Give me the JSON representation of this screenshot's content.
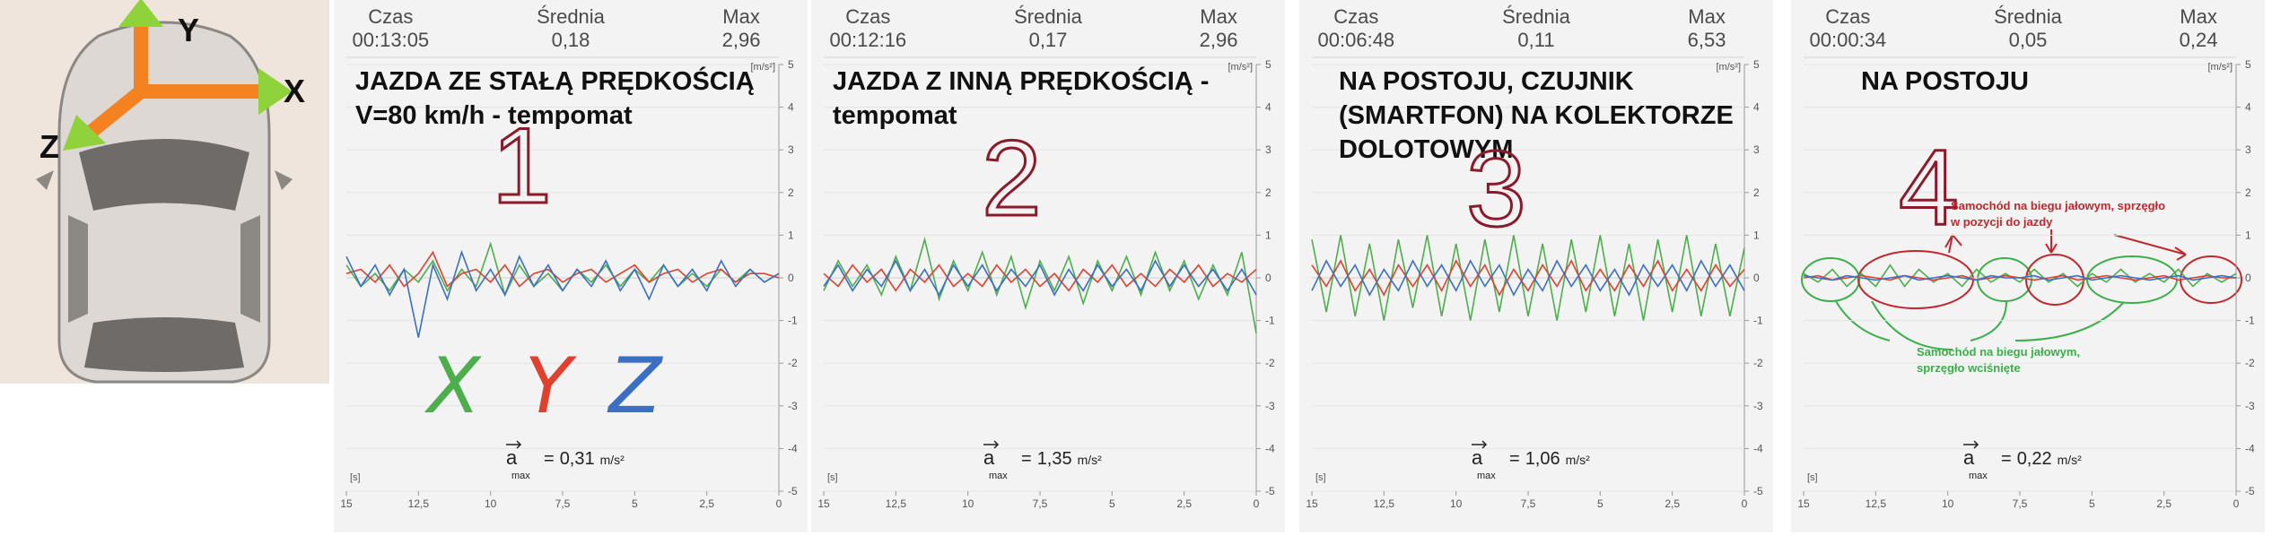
{
  "car_diagram": {
    "axis_labels": [
      "Y",
      "X",
      "Z"
    ]
  },
  "chart_data": [
    {
      "type": "line",
      "stats": [
        {
          "label": "Czas",
          "value": "00:13:05"
        },
        {
          "label": "Średnia",
          "value": "0,18"
        },
        {
          "label": "Max",
          "value": "2,96"
        }
      ],
      "annotation_lines": [
        "JAZDA ZE STAŁĄ PRĘDKOŚCIĄ",
        "V=80 km/h - tempomat"
      ],
      "marker": "1",
      "y_unit": "[m/s²]",
      "x_unit": "[s]",
      "a_max": {
        "symbol": "a",
        "subscript": "max",
        "relation": "=",
        "value": "0,31",
        "unit": "m/s²"
      },
      "x": [
        15,
        14.5,
        14,
        13.5,
        13,
        12.5,
        12,
        11.5,
        11,
        10.5,
        10,
        9.5,
        9,
        8.5,
        8,
        7.5,
        7,
        6.5,
        6,
        5.5,
        5,
        4.5,
        4,
        3.5,
        3,
        2.5,
        2,
        1.5,
        1,
        0.5,
        0
      ],
      "xlim": [
        15,
        0
      ],
      "xticks": [
        15,
        {
          "value": 12.5,
          "label": "12,5"
        },
        10,
        {
          "value": 7.5,
          "label": "7,5"
        },
        5,
        {
          "value": 2.5,
          "label": "2,5"
        },
        0
      ],
      "ylim": [
        -5,
        5
      ],
      "yticks": [
        -5,
        -4,
        -3,
        -2,
        -1,
        0,
        1,
        2,
        3,
        4,
        5
      ],
      "grid": true,
      "series": [
        {
          "name": "X",
          "color": "#4cae4c",
          "values": [
            0.3,
            -0.2,
            0.1,
            -0.3,
            0.2,
            -0.1,
            0.4,
            -0.3,
            0.2,
            -0.2,
            0.8,
            -0.4,
            0.3,
            -0.2,
            0.1,
            -0.3,
            0.2,
            -0.1,
            0.3,
            -0.2,
            0.2,
            -0.1,
            0.3,
            -0.2,
            0.1,
            -0.2,
            0.2,
            -0.1,
            0.2,
            -0.1,
            0.1
          ]
        },
        {
          "name": "Y",
          "color": "#e0402e",
          "values": [
            0.1,
            0.2,
            -0.1,
            0.3,
            -0.2,
            0.1,
            0.6,
            -0.2,
            0.1,
            0.2,
            -0.1,
            0.3,
            -0.2,
            0.1,
            0.2,
            -0.1,
            0.1,
            0.2,
            -0.1,
            0.1,
            0.3,
            -0.1,
            0.1,
            0.2,
            -0.1,
            0.1,
            0.2,
            -0.1,
            0.1,
            0.1,
            0
          ]
        },
        {
          "name": "Z",
          "color": "#3a6fc4",
          "values": [
            0.5,
            -0.2,
            0.3,
            -0.4,
            0.2,
            -1.4,
            0.3,
            -0.5,
            0.6,
            -0.3,
            0.2,
            -0.4,
            0.5,
            -0.2,
            0.3,
            -0.3,
            0.2,
            -0.2,
            0.4,
            -0.3,
            0.2,
            -0.5,
            0.3,
            -0.2,
            0.2,
            -0.3,
            0.4,
            -0.2,
            0.2,
            -0.1,
            0.1
          ]
        }
      ]
    },
    {
      "type": "line",
      "stats": [
        {
          "label": "Czas",
          "value": "00:12:16"
        },
        {
          "label": "Średnia",
          "value": "0,17"
        },
        {
          "label": "Max",
          "value": "2,96"
        }
      ],
      "annotation_lines": [
        "JAZDA Z INNĄ PRĘDKOŚCIĄ -",
        "tempomat"
      ],
      "marker": "2",
      "y_unit": "[m/s²]",
      "x_unit": "[s]",
      "a_max": {
        "symbol": "a",
        "subscript": "max",
        "relation": "=",
        "value": "1,35",
        "unit": "m/s²"
      },
      "x": [
        15,
        14.5,
        14,
        13.5,
        13,
        12.5,
        12,
        11.5,
        11,
        10.5,
        10,
        9.5,
        9,
        8.5,
        8,
        7.5,
        7,
        6.5,
        6,
        5.5,
        5,
        4.5,
        4,
        3.5,
        3,
        2.5,
        2,
        1.5,
        1,
        0.5,
        0
      ],
      "xlim": [
        15,
        0
      ],
      "xticks": [
        15,
        {
          "value": 12.5,
          "label": "12,5"
        },
        10,
        {
          "value": 7.5,
          "label": "7,5"
        },
        5,
        {
          "value": 2.5,
          "label": "2,5"
        },
        0
      ],
      "ylim": [
        -5,
        5
      ],
      "yticks": [
        -5,
        -4,
        -3,
        -2,
        -1,
        0,
        1,
        2,
        3,
        4,
        5
      ],
      "grid": true,
      "series": [
        {
          "color": "#4cae4c",
          "values": [
            -0.3,
            0.4,
            -0.2,
            0.3,
            -0.4,
            0.5,
            -0.3,
            0.9,
            -0.5,
            0.4,
            -0.3,
            0.6,
            -0.4,
            0.5,
            -0.7,
            0.4,
            -0.3,
            0.5,
            -0.6,
            0.4,
            -0.3,
            0.5,
            -0.4,
            0.6,
            -0.3,
            0.4,
            -0.5,
            0.3,
            -0.4,
            0.6,
            -1.3
          ]
        },
        {
          "color": "#e0402e",
          "values": [
            0.1,
            -0.2,
            0.3,
            -0.1,
            0.2,
            -0.3,
            0.2,
            -0.1,
            0.3,
            -0.2,
            0.1,
            -0.2,
            0.3,
            -0.1,
            0.2,
            -0.2,
            0.1,
            -0.3,
            0.2,
            -0.1,
            0.3,
            -0.2,
            0.1,
            -0.2,
            0.2,
            -0.1,
            0.3,
            -0.2,
            0.1,
            -0.1,
            0.2
          ]
        },
        {
          "color": "#3a6fc4",
          "values": [
            -0.2,
            0.3,
            -0.3,
            0.2,
            -0.2,
            0.4,
            -0.3,
            0.2,
            -0.4,
            0.3,
            -0.2,
            0.3,
            -0.3,
            0.2,
            -0.2,
            0.3,
            -0.4,
            0.2,
            -0.3,
            0.3,
            -0.2,
            0.2,
            -0.3,
            0.4,
            -0.2,
            0.3,
            -0.2,
            0.2,
            -0.3,
            0.2,
            -0.4
          ]
        }
      ]
    },
    {
      "type": "line",
      "stats": [
        {
          "label": "Czas",
          "value": "00:06:48"
        },
        {
          "label": "Średnia",
          "value": "0,11"
        },
        {
          "label": "Max",
          "value": "6,53"
        }
      ],
      "annotation_lines": [
        "NA POSTOJU, CZUJNIK",
        "(SMARTFON) NA KOLEKTORZE",
        "DOLOTOWYM"
      ],
      "marker": "3",
      "y_unit": "[m/s²]",
      "x_unit": "[s]",
      "a_max": {
        "symbol": "a",
        "subscript": "max",
        "relation": "=",
        "value": "1,06",
        "unit": "m/s²"
      },
      "x": [
        15,
        14.5,
        14,
        13.5,
        13,
        12.5,
        12,
        11.5,
        11,
        10.5,
        10,
        9.5,
        9,
        8.5,
        8,
        7.5,
        7,
        6.5,
        6,
        5.5,
        5,
        4.5,
        4,
        3.5,
        3,
        2.5,
        2,
        1.5,
        1,
        0.5,
        0
      ],
      "xlim": [
        15,
        0
      ],
      "xticks": [
        15,
        {
          "value": 12.5,
          "label": "12,5"
        },
        10,
        {
          "value": 7.5,
          "label": "7,5"
        },
        5,
        {
          "value": 2.5,
          "label": "2,5"
        },
        0
      ],
      "ylim": [
        -5,
        5
      ],
      "yticks": [
        -5,
        -4,
        -3,
        -2,
        -1,
        0,
        1,
        2,
        3,
        4,
        5
      ],
      "grid": true,
      "series": [
        {
          "color": "#4cae4c",
          "values": [
            0.9,
            -0.8,
            1.0,
            -0.9,
            0.8,
            -1.0,
            0.9,
            -0.7,
            1.0,
            -0.9,
            0.8,
            -1.0,
            0.9,
            -0.8,
            1.0,
            -0.9,
            0.8,
            -1.0,
            0.9,
            -0.8,
            1.0,
            -0.9,
            0.8,
            -1.0,
            0.9,
            -0.8,
            1.0,
            -0.9,
            0.8,
            -0.9,
            0.7
          ]
        },
        {
          "color": "#e0402e",
          "values": [
            0.3,
            -0.2,
            0.4,
            -0.3,
            0.2,
            -0.4,
            0.3,
            -0.2,
            0.3,
            -0.3,
            0.4,
            -0.2,
            0.3,
            -0.4,
            0.2,
            -0.3,
            0.3,
            -0.2,
            0.4,
            -0.3,
            0.2,
            -0.3,
            0.3,
            -0.2,
            0.4,
            -0.3,
            0.2,
            -0.3,
            0.3,
            -0.2,
            0.2
          ]
        },
        {
          "color": "#3a6fc4",
          "values": [
            -0.3,
            0.4,
            -0.2,
            0.3,
            -0.4,
            0.2,
            -0.3,
            0.4,
            -0.2,
            0.3,
            -0.3,
            0.4,
            -0.2,
            0.3,
            -0.4,
            0.2,
            -0.3,
            0.4,
            -0.2,
            0.3,
            -0.3,
            0.2,
            -0.4,
            0.3,
            -0.2,
            0.3,
            -0.3,
            0.4,
            -0.2,
            0.3,
            -0.3
          ]
        }
      ]
    },
    {
      "type": "line",
      "stats": [
        {
          "label": "Czas",
          "value": "00:00:34"
        },
        {
          "label": "Średnia",
          "value": "0,05"
        },
        {
          "label": "Max",
          "value": "0,24"
        }
      ],
      "annotation_lines": [
        "NA POSTOJU"
      ],
      "marker": "4",
      "notes": [
        {
          "color": "#c0282d",
          "lines": [
            "Samochód na biegu jałowym, sprzęgło",
            "w pozycji do jazdy"
          ]
        },
        {
          "color": "#3cae4a",
          "lines": [
            "Samochód na biegu jałowym,",
            "sprzęgło wciśnięte"
          ]
        }
      ],
      "y_unit": "[m/s²]",
      "x_unit": "[s]",
      "a_max": {
        "symbol": "a",
        "subscript": "max",
        "relation": "=",
        "value": "0,22",
        "unit": "m/s²"
      },
      "x": [
        15,
        14.5,
        14,
        13.5,
        13,
        12.5,
        12,
        11.5,
        11,
        10.5,
        10,
        9.5,
        9,
        8.5,
        8,
        7.5,
        7,
        6.5,
        6,
        5.5,
        5,
        4.5,
        4,
        3.5,
        3,
        2.5,
        2,
        1.5,
        1,
        0.5,
        0
      ],
      "xlim": [
        15,
        0
      ],
      "xticks": [
        15,
        {
          "value": 12.5,
          "label": "12,5"
        },
        10,
        {
          "value": 7.5,
          "label": "7,5"
        },
        5,
        {
          "value": 2.5,
          "label": "2,5"
        },
        0
      ],
      "ylim": [
        -5,
        5
      ],
      "yticks": [
        -5,
        -4,
        -3,
        -2,
        -1,
        0,
        1,
        2,
        3,
        4,
        5
      ],
      "grid": true,
      "series": [
        {
          "color": "#4cae4c",
          "values": [
            0.1,
            -0.1,
            0.2,
            -0.2,
            0.1,
            -0.2,
            0.3,
            -0.2,
            0.2,
            -0.1,
            0.1,
            -0.2,
            0.2,
            -0.1,
            0.1,
            -0.1,
            0.2,
            -0.1,
            0.1,
            -0.2,
            0.1,
            -0.1,
            0.2,
            -0.1,
            0.1,
            -0.1,
            0.2,
            -0.2,
            0.1,
            -0.1,
            0.1
          ]
        },
        {
          "color": "#e0402e",
          "values": [
            0,
            0.05,
            -0.05,
            0,
            0.05,
            0,
            -0.05,
            0.05,
            0,
            -0.05,
            0,
            0.05,
            -0.05,
            0,
            0.05,
            0,
            -0.05,
            0,
            0.05,
            -0.05,
            0,
            0.05,
            0,
            -0.05,
            0,
            0.05,
            -0.05,
            0,
            0.05,
            0,
            0
          ]
        },
        {
          "color": "#3a6fc4",
          "values": [
            0.05,
            0,
            -0.05,
            0.05,
            0,
            -0.05,
            0,
            0.05,
            -0.05,
            0,
            0.05,
            0,
            -0.05,
            0.05,
            0,
            0,
            0.05,
            -0.05,
            0,
            0.05,
            -0.05,
            0,
            0.05,
            0,
            -0.05,
            0,
            0.05,
            -0.05,
            0,
            0.05,
            0
          ]
        }
      ]
    }
  ]
}
